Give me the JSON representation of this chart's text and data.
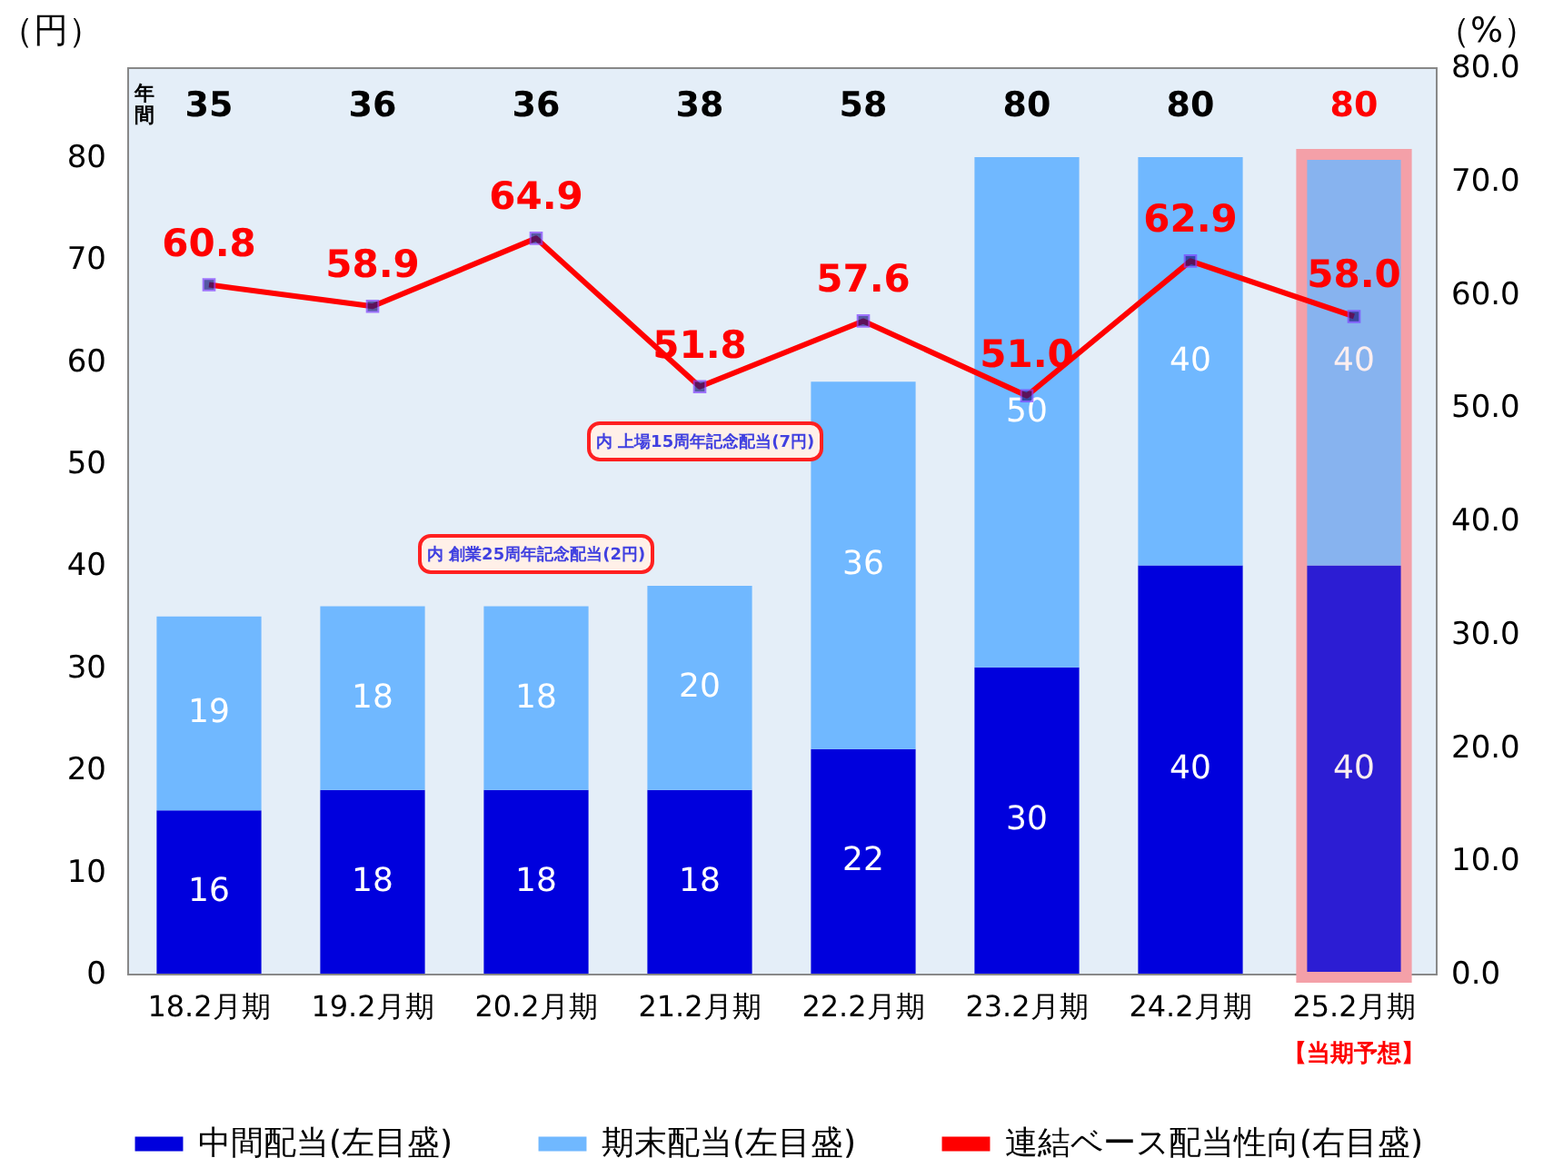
{
  "chart_data": {
    "type": "bar",
    "stacked": true,
    "categories": [
      "18.2月期",
      "19.2月期",
      "20.2月期",
      "21.2月期",
      "22.2月期",
      "23.2月期",
      "24.2月期",
      "25.2月期"
    ],
    "series": [
      {
        "name": "中間配当(左目盛)",
        "color": "#0000dd",
        "values": [
          16,
          18,
          18,
          18,
          22,
          30,
          40,
          40
        ]
      },
      {
        "name": "期末配当(左目盛)",
        "color": "#70b8ff",
        "values": [
          19,
          18,
          18,
          20,
          36,
          50,
          40,
          40
        ]
      },
      {
        "name": "連結ベース配当性向(右目盛)",
        "type": "line",
        "axis": "y2",
        "color": "#ff0000",
        "values": [
          60.8,
          58.9,
          64.9,
          51.8,
          57.6,
          51.0,
          62.9,
          58.0
        ],
        "value_labels": [
          "60.8",
          "58.9",
          "64.9",
          "51.8",
          "57.6",
          "51.0",
          "62.9",
          "58.0"
        ]
      }
    ],
    "data_labels": true,
    "ylabel": "（円）",
    "y2label": "（%）",
    "ylim": [
      0,
      88.8
    ],
    "yticks": [
      0,
      10,
      20,
      30,
      40,
      50,
      60,
      70,
      80
    ],
    "y2lim": [
      0,
      80
    ],
    "y2ticks": [
      {
        "value": 0,
        "label": "0.0"
      },
      {
        "value": 10,
        "label": "10.0"
      },
      {
        "value": 20,
        "label": "20.0"
      },
      {
        "value": 30,
        "label": "30.0"
      },
      {
        "value": 40,
        "label": "40.0"
      },
      {
        "value": 50,
        "label": "50.0"
      },
      {
        "value": 60,
        "label": "60.0"
      },
      {
        "value": 70,
        "label": "70.0"
      },
      {
        "value": 80,
        "label": "80.0"
      }
    ],
    "annotations": [
      "年間",
      "内 創業25周年記念配当(2円)",
      "内 上場15周年記念配当(7円)",
      "【当期予想】",
      "35",
      "36",
      "36",
      "38",
      "58",
      "80",
      "80",
      "80"
    ],
    "bands": [
      {
        "axis": "x",
        "from": "25.2月期",
        "to": "25.2月期",
        "color": "#f4a0a8"
      }
    ],
    "marker": "square",
    "line_style": "solid",
    "grid": false,
    "legend": "bottom"
  }
}
